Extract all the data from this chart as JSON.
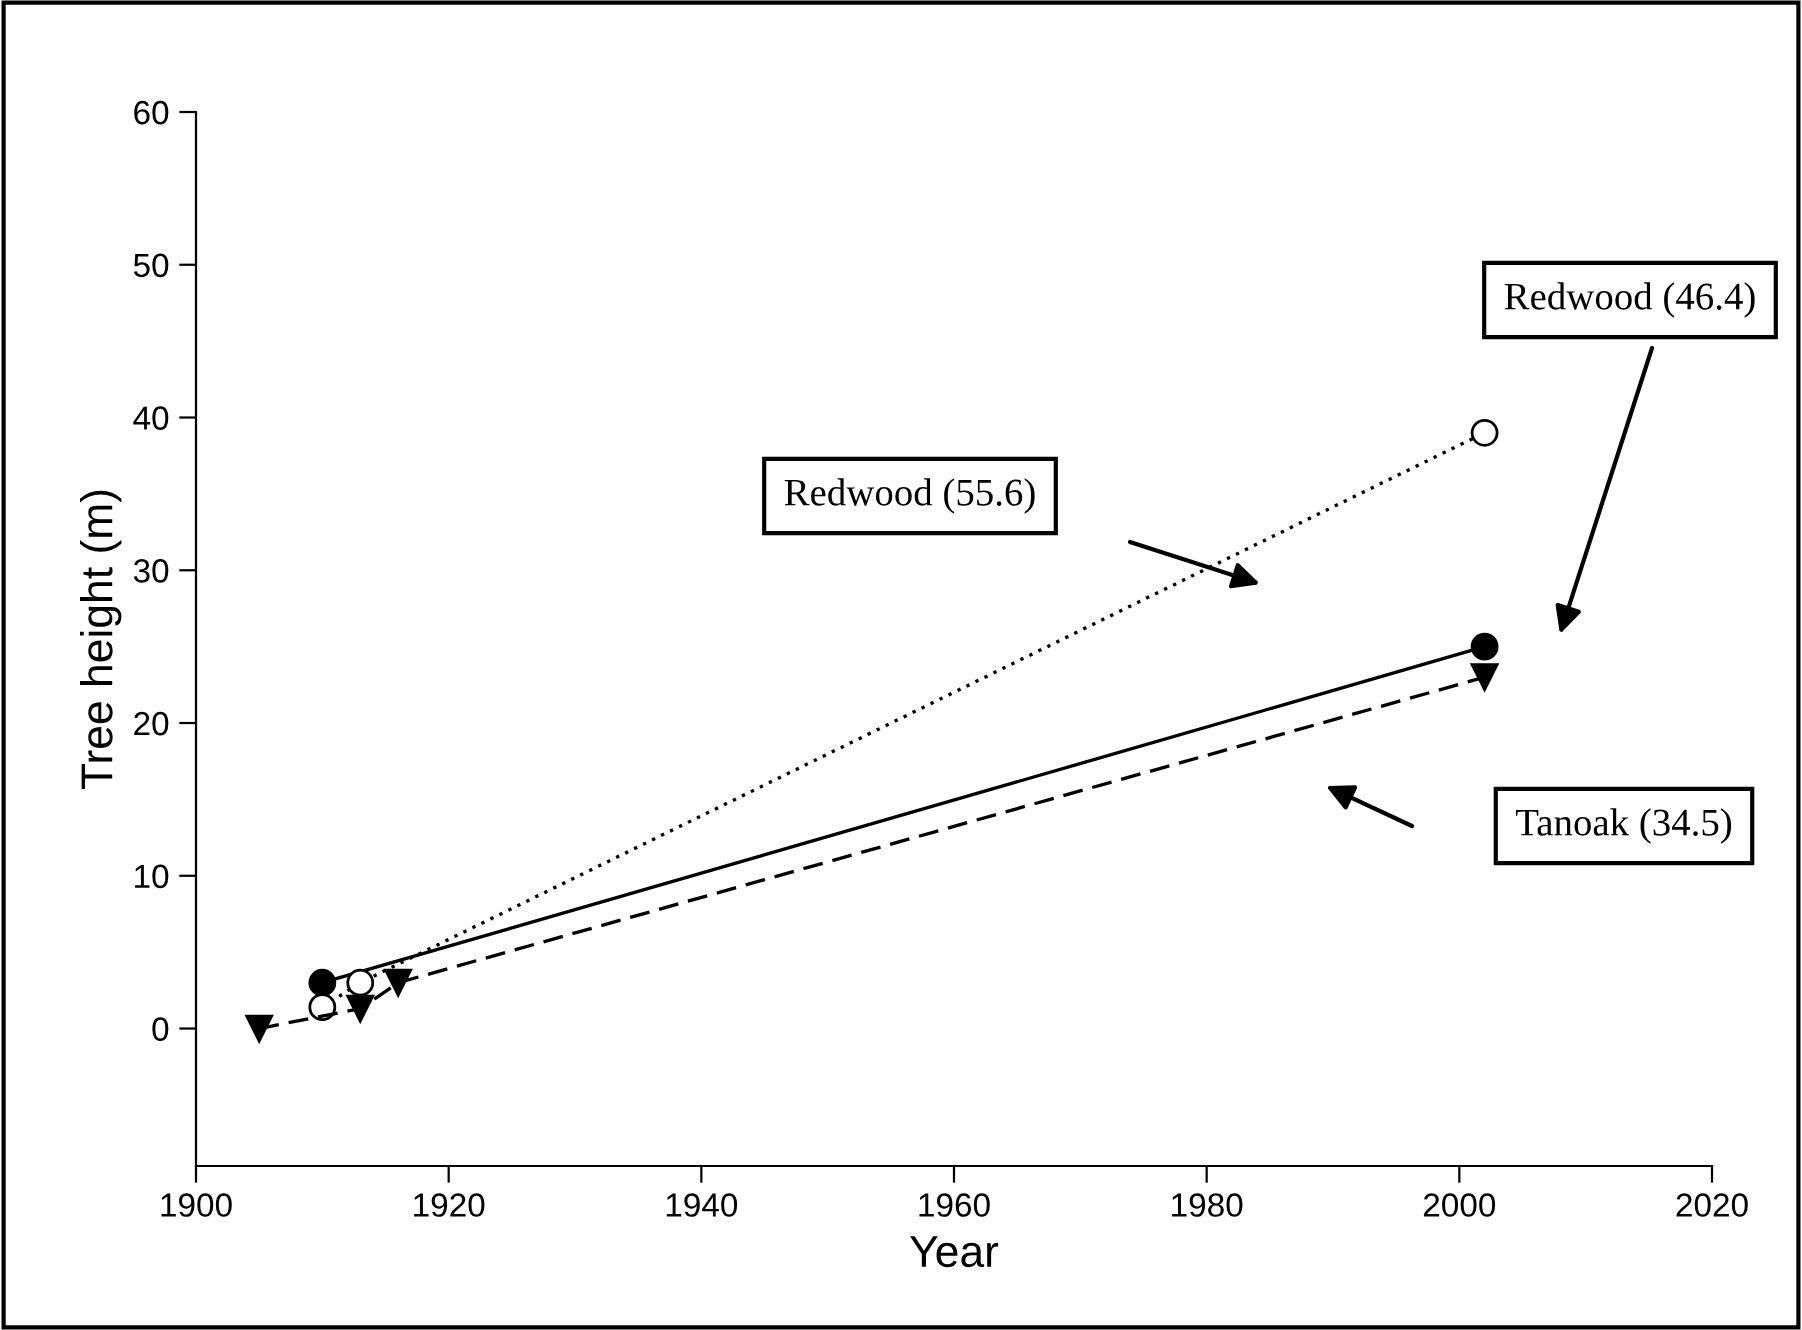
{
  "chart_data": {
    "type": "line",
    "xlabel": "Year",
    "ylabel": "Tree height (m)",
    "xlim": [
      1900,
      2020
    ],
    "xticks": [
      1900,
      1920,
      1940,
      1960,
      1980,
      2000,
      2020
    ],
    "ylim": [
      -9,
      60
    ],
    "yticks": [
      0,
      10,
      20,
      30,
      40,
      50,
      60
    ],
    "grid": false,
    "legend": false,
    "series": [
      {
        "color": "#000000",
        "marker": "circle",
        "line_style": "solid",
        "x": [
          1910,
          2002
        ],
        "values": [
          3,
          25
        ]
      },
      {
        "color": "#000000",
        "marker": "circle",
        "line_style": "dotted",
        "x": [
          1910,
          1913,
          2002
        ],
        "values": [
          1.4,
          3,
          39
        ]
      },
      {
        "color": "#000000",
        "marker": "triangle",
        "line_style": "dashed",
        "x": [
          1905,
          1913,
          1916,
          2002
        ],
        "values": [
          0,
          1.3,
          3,
          23
        ]
      }
    ],
    "annotations": [
      "Redwood (55.6)",
      "Redwood (46.4)",
      "Tanoak (34.5)"
    ]
  }
}
